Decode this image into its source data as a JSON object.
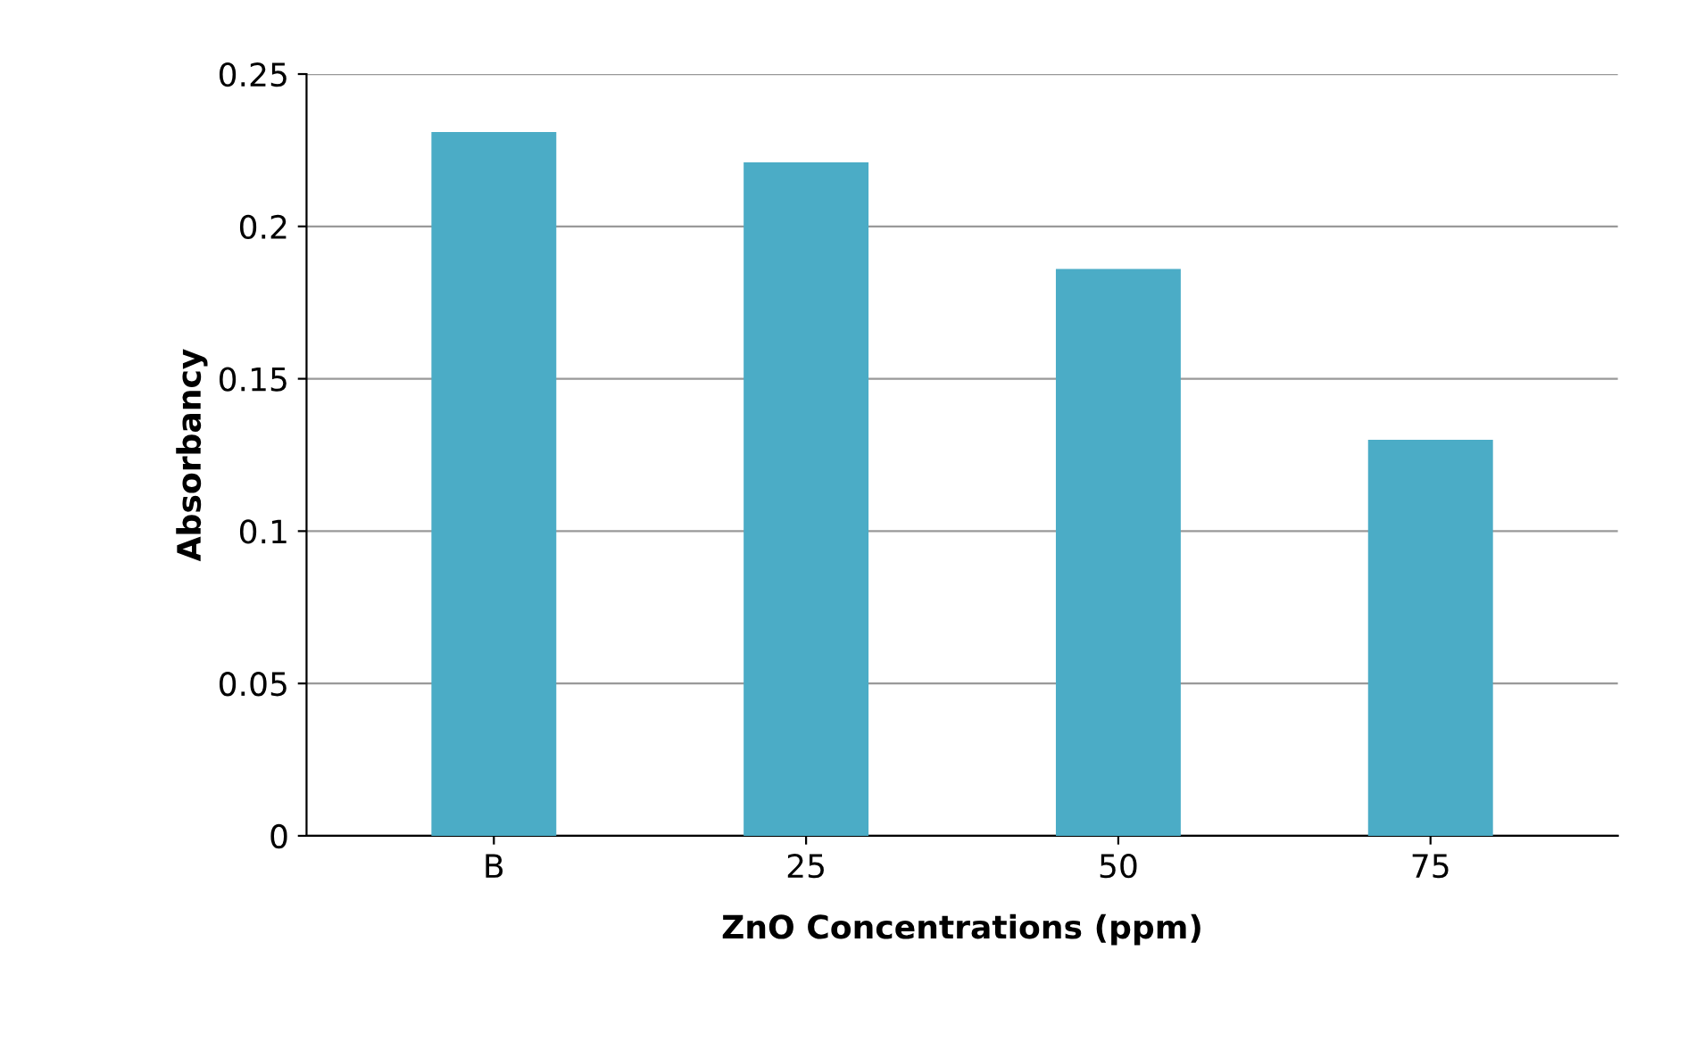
{
  "chart_data": {
    "type": "bar",
    "xlabel": "ZnO Concentrations (ppm)",
    "ylabel": "Absorbancy",
    "categories": [
      "B",
      "25",
      "50",
      "75"
    ],
    "values": [
      0.231,
      0.221,
      0.186,
      0.13
    ],
    "color": "#4bacc6",
    "ylim": [
      0,
      0.25
    ],
    "yticks": [
      0,
      0.05,
      0.1,
      0.15,
      0.2,
      0.25
    ],
    "grid": "y"
  }
}
